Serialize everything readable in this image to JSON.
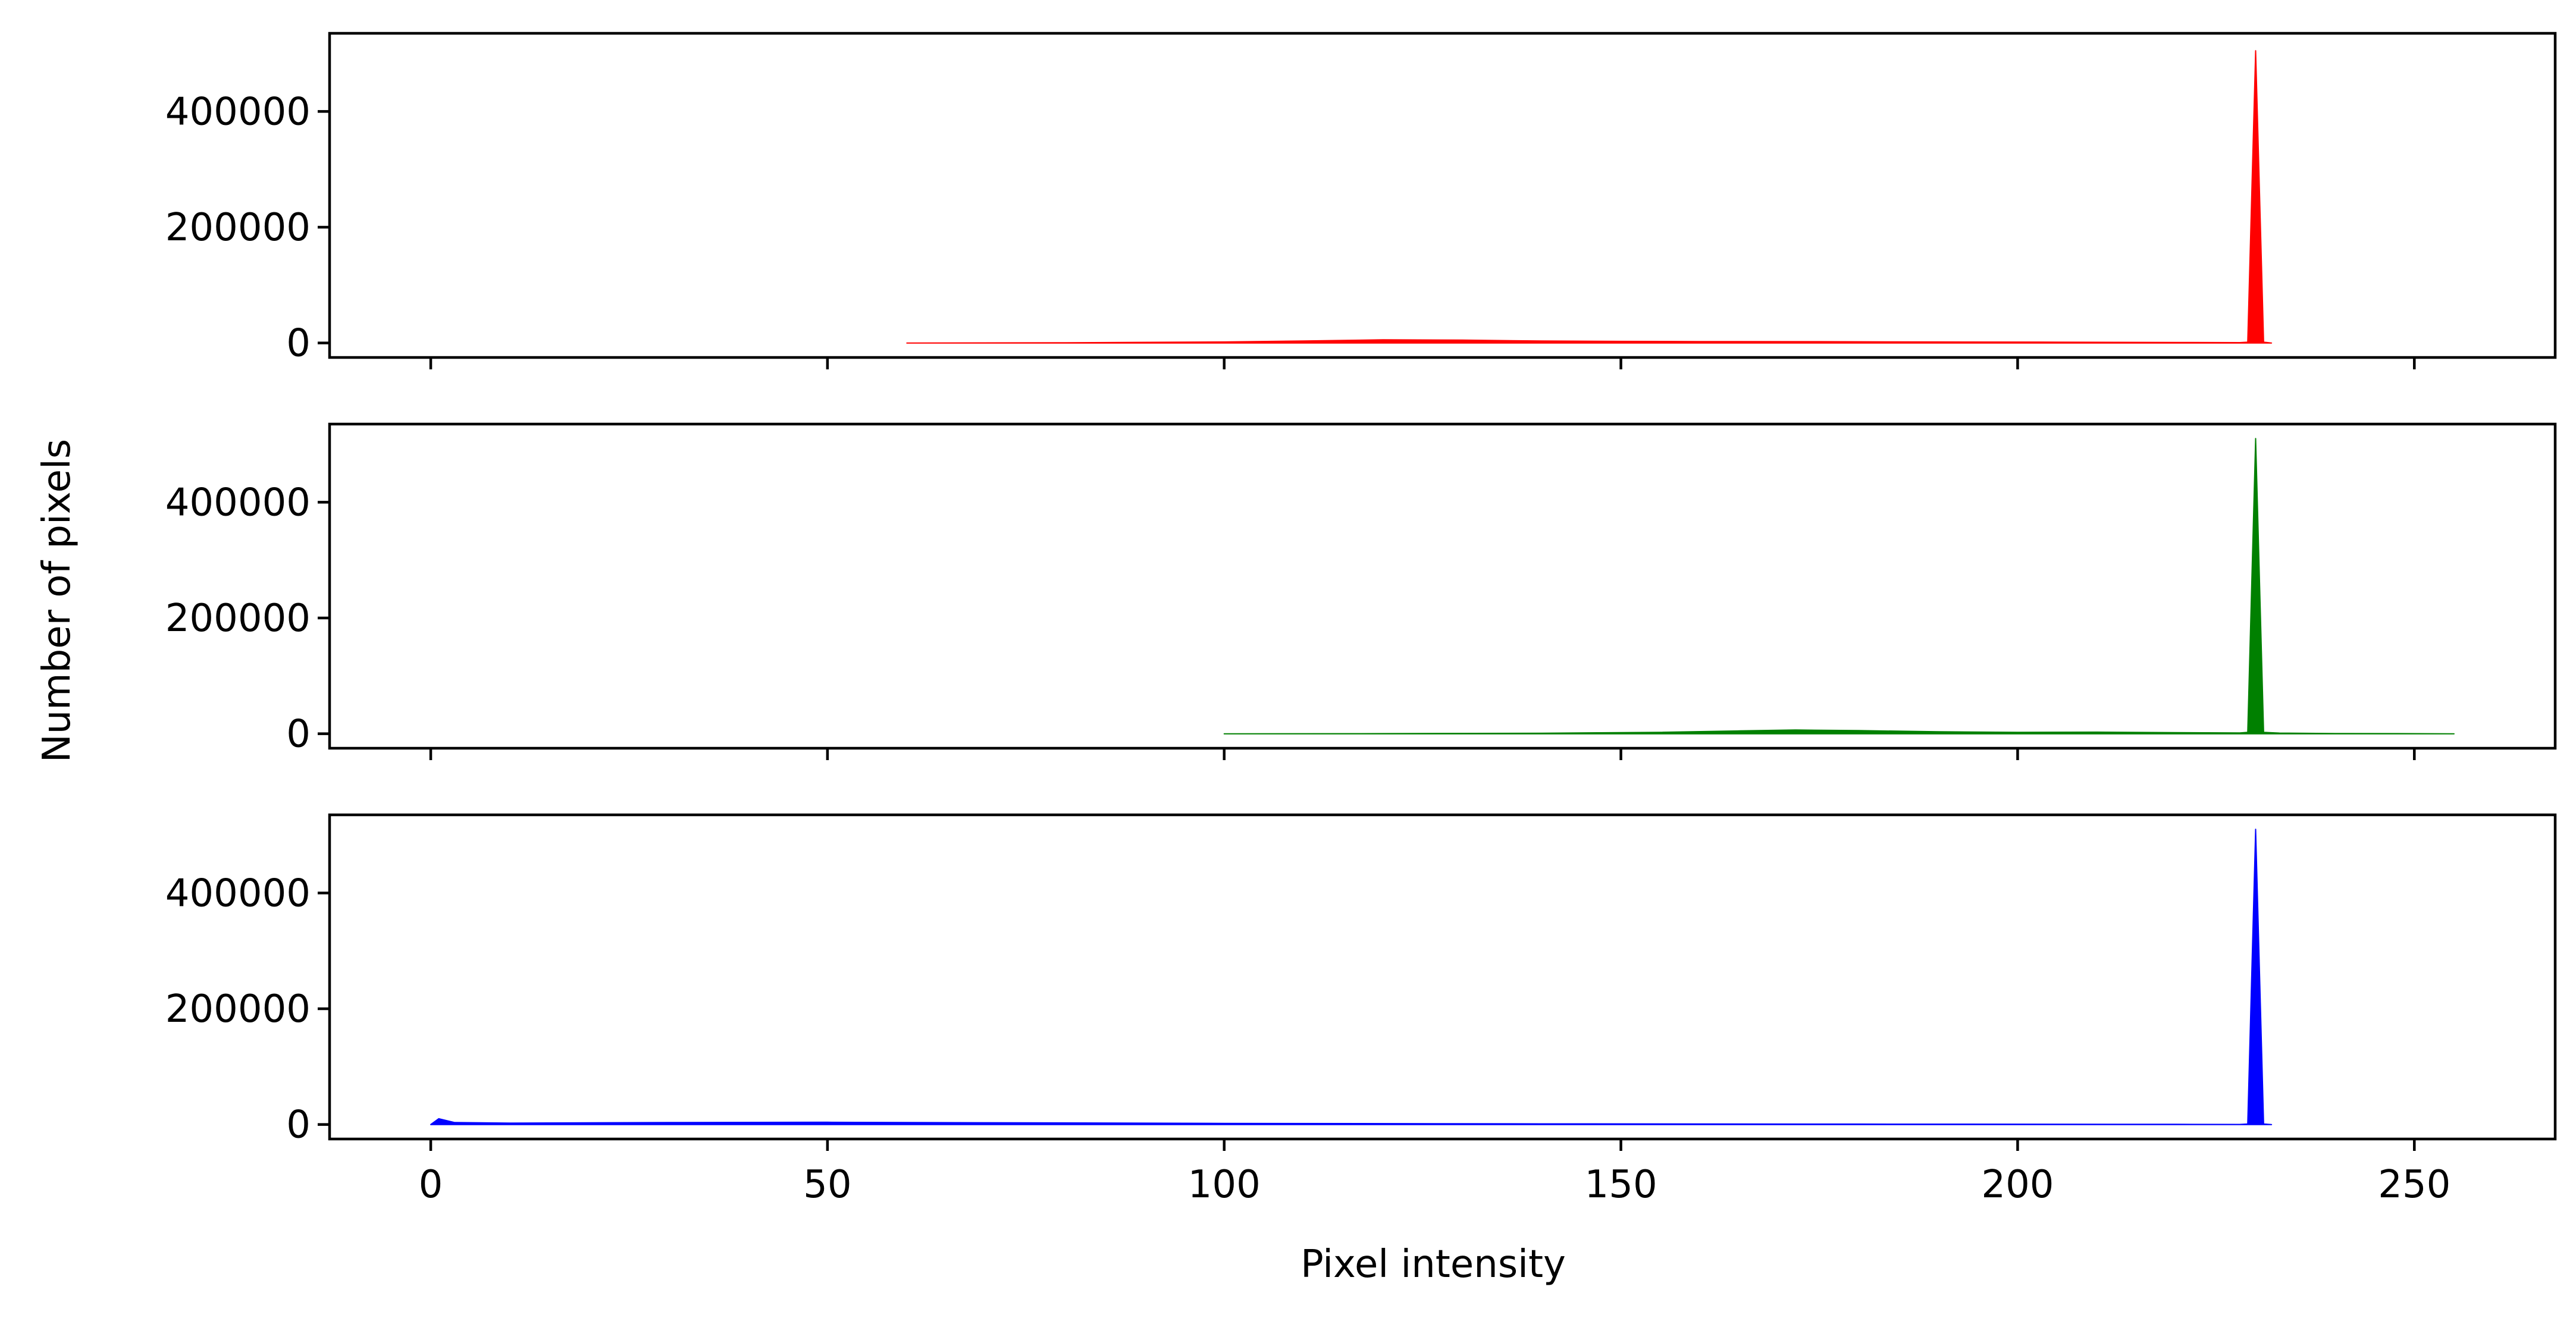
{
  "chart_data": {
    "type": "area",
    "xlabel": "Pixel intensity",
    "ylabel": "Number of pixels",
    "xlim": [
      -12.75,
      267.75
    ],
    "ylim": [
      -25000,
      535000
    ],
    "x_ticks": [
      0,
      50,
      100,
      150,
      200,
      250
    ],
    "x_tick_labels": [
      "0",
      "50",
      "100",
      "150",
      "200",
      "250"
    ],
    "y_ticks": [
      0,
      200000,
      400000
    ],
    "y_tick_labels": [
      "0",
      "200000",
      "400000"
    ],
    "grid": false,
    "legend": "none",
    "shared_x": true,
    "panels": [
      {
        "channel": "red",
        "color": "#ff0000",
        "points": [
          [
            60,
            0
          ],
          [
            80,
            500
          ],
          [
            100,
            1800
          ],
          [
            110,
            3500
          ],
          [
            120,
            5500
          ],
          [
            130,
            5000
          ],
          [
            140,
            3500
          ],
          [
            150,
            2800
          ],
          [
            160,
            2500
          ],
          [
            175,
            2300
          ],
          [
            190,
            1800
          ],
          [
            205,
            1500
          ],
          [
            220,
            1000
          ],
          [
            228,
            700
          ],
          [
            229,
            1500
          ],
          [
            230,
            505000
          ],
          [
            231,
            1500
          ],
          [
            232,
            0
          ]
        ]
      },
      {
        "channel": "green",
        "color": "#008000",
        "points": [
          [
            100,
            0
          ],
          [
            120,
            300
          ],
          [
            140,
            1000
          ],
          [
            155,
            2500
          ],
          [
            165,
            5000
          ],
          [
            172,
            6500
          ],
          [
            180,
            5500
          ],
          [
            190,
            3500
          ],
          [
            200,
            2500
          ],
          [
            210,
            2800
          ],
          [
            220,
            2000
          ],
          [
            228,
            1500
          ],
          [
            229,
            2500
          ],
          [
            230,
            510000
          ],
          [
            231,
            2500
          ],
          [
            233,
            1200
          ],
          [
            240,
            500
          ],
          [
            248,
            300
          ],
          [
            255,
            0
          ]
        ]
      },
      {
        "channel": "blue",
        "color": "#0000ff",
        "points": [
          [
            0,
            0
          ],
          [
            1,
            10000
          ],
          [
            3,
            3500
          ],
          [
            10,
            2500
          ],
          [
            30,
            3500
          ],
          [
            50,
            4000
          ],
          [
            70,
            3200
          ],
          [
            100,
            2000
          ],
          [
            140,
            1200
          ],
          [
            180,
            800
          ],
          [
            220,
            400
          ],
          [
            228,
            200
          ],
          [
            229,
            1000
          ],
          [
            230,
            510000
          ],
          [
            231,
            1000
          ],
          [
            232,
            0
          ]
        ]
      }
    ]
  }
}
